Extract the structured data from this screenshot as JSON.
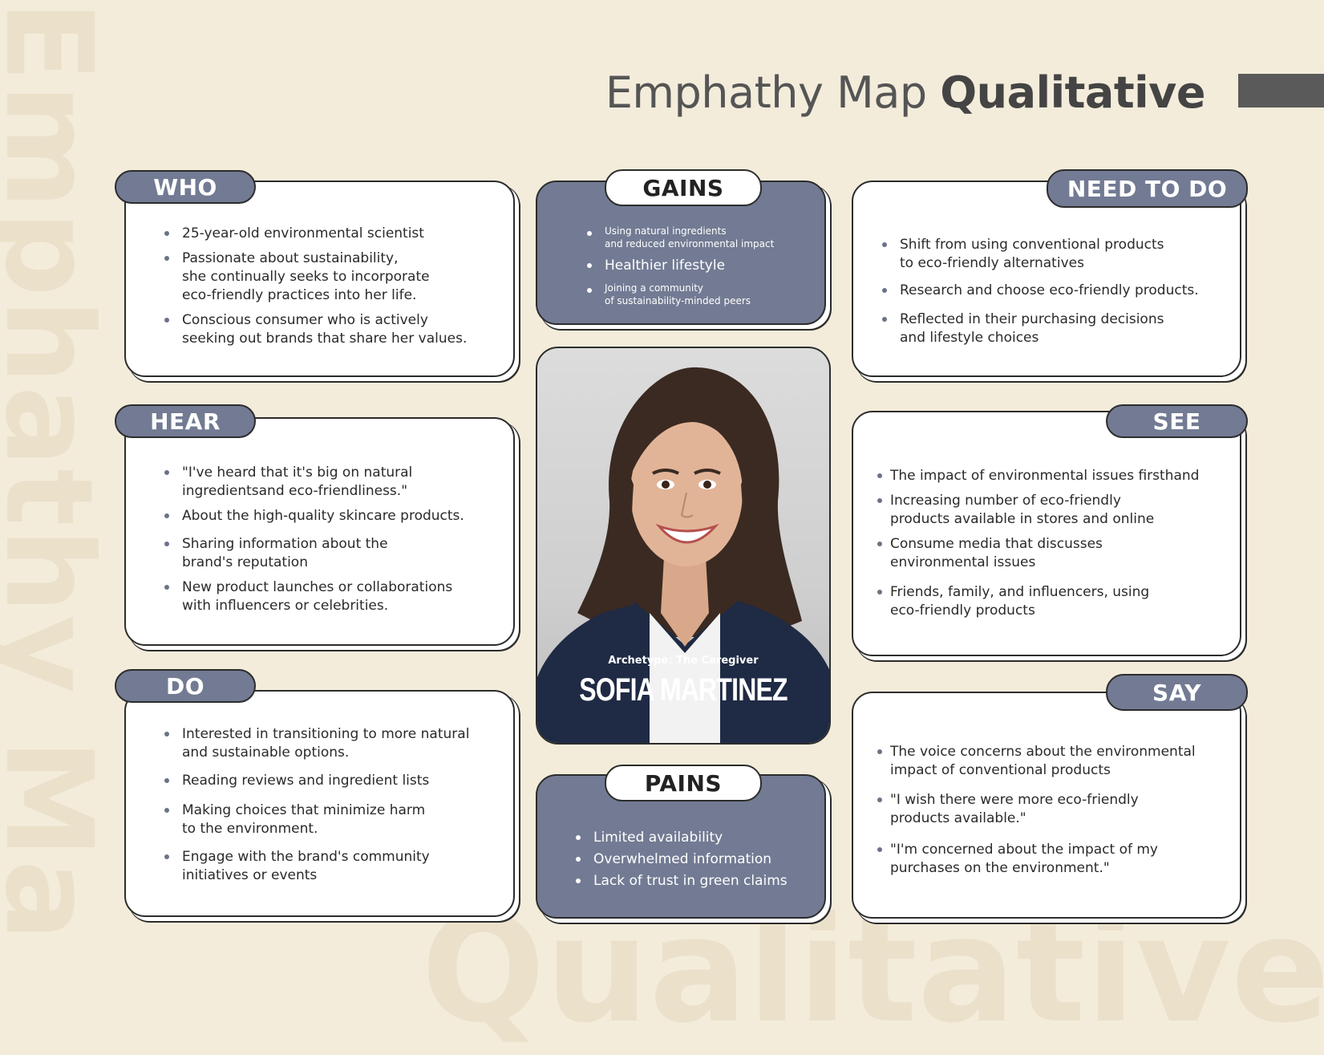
{
  "header": {
    "title_regular": "Emphathy Map",
    "title_bold": "Qualitative"
  },
  "watermark": {
    "side": "Emphathy Ma",
    "bottom": "Qualitative"
  },
  "who": {
    "label": "WHO",
    "items": [
      "25-year-old environmental scientist",
      "Passionate about sustainability,\nshe continually seeks to incorporate\neco-friendly practices into her life.",
      "Conscious consumer who is actively\nseeking out brands that share her values."
    ]
  },
  "gains": {
    "label": "GAINS",
    "items": [
      "Using natural ingredients\nand reduced environmental impact",
      "Healthier lifestyle",
      "Joining a community\nof sustainability-minded peers"
    ]
  },
  "need_to_do": {
    "label": "NEED TO DO",
    "items": [
      "Shift from using conventional products\nto eco-friendly alternatives",
      "Research and choose eco-friendly products.",
      "Reflected in their purchasing decisions\nand lifestyle choices"
    ]
  },
  "hear": {
    "label": "HEAR",
    "items": [
      "\"I've heard that it's big on natural\ningredientsand eco-friendliness.\"",
      "About the high-quality skincare products.",
      "Sharing information about the\nbrand's reputation",
      "New product launches or collaborations\nwith influencers or celebrities."
    ]
  },
  "see": {
    "label": "SEE",
    "items": [
      "The impact of environmental issues firsthand",
      "Increasing number of eco-friendly\nproducts available in stores and online",
      "Consume media that discusses\nenvironmental issues",
      "Friends, family, and influencers, using\neco-friendly products"
    ]
  },
  "do": {
    "label": "DO",
    "items": [
      "Interested in transitioning to more natural\nand sustainable options.",
      "Reading reviews and ingredient lists",
      "Making choices that minimize harm\nto the environment.",
      "Engage with the brand's community\ninitiatives or events"
    ]
  },
  "say": {
    "label": "SAY",
    "items": [
      "The voice concerns about the environmental\nimpact of conventional products",
      "\"I wish there were more eco-friendly\nproducts available.\"",
      "\"I'm concerned about the impact of my\npurchases on the environment.\""
    ]
  },
  "pains": {
    "label": "PAINS",
    "items": [
      "Limited availability",
      "Overwhelmed information",
      "Lack of trust in green claims"
    ]
  },
  "persona": {
    "archetype": "Archetype: The Caregiver",
    "name": "SOFIA MARTINEZ"
  },
  "colors": {
    "background": "#f4ecdb",
    "accent": "#727b93",
    "title": "#555555"
  }
}
